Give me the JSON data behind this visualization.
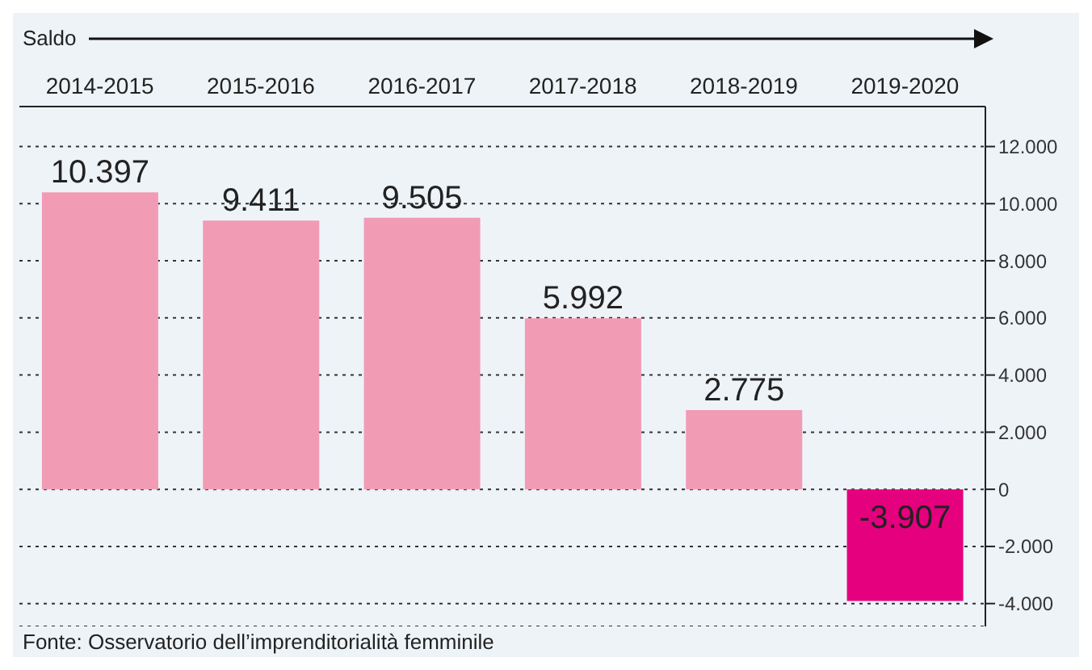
{
  "chart_data": {
    "type": "bar",
    "title": "Saldo",
    "categories": [
      "2014-2015",
      "2015-2016",
      "2016-2017",
      "2017-2018",
      "2018-2019",
      "2019-2020"
    ],
    "values": [
      10397,
      9411,
      9505,
      5992,
      2775,
      -3907
    ],
    "colors": [
      "#f29bb5",
      "#f29bb5",
      "#f29bb5",
      "#f29bb5",
      "#f29bb5",
      "#e5007d"
    ],
    "value_labels": [
      "10.397",
      "9.411",
      "9.505",
      "5.992",
      "2.775",
      "-3.907"
    ],
    "ylim": [
      -4800,
      13400
    ],
    "yticks": [
      {
        "value": -4000,
        "label": "-4.000"
      },
      {
        "value": -2000,
        "label": "-2.000"
      },
      {
        "value": 0,
        "label": "0"
      },
      {
        "value": 2000,
        "label": "2.000"
      },
      {
        "value": 4000,
        "label": "4.000"
      },
      {
        "value": 6000,
        "label": "6.000"
      },
      {
        "value": 8000,
        "label": "8.000"
      },
      {
        "value": 10000,
        "label": "10.000"
      },
      {
        "value": 12000,
        "label": "12.000"
      }
    ],
    "grid": "y",
    "annotations": [
      "Fonte: Osservatorio dell’imprenditorialità femminile"
    ]
  }
}
